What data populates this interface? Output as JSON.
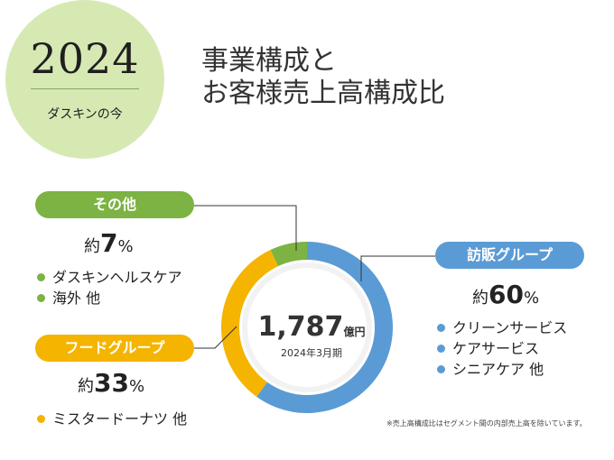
{
  "badge": {
    "year": "2024",
    "subtitle": "ダスキンの今"
  },
  "title": {
    "line1": "事業構成と",
    "line2": "お客様売上高構成比"
  },
  "colors": {
    "visit": "#5b9bd5",
    "food": "#f4b400",
    "other": "#7cb342",
    "badge_bg": "#d6e9b3"
  },
  "center": {
    "value": "1,787",
    "unit": "億円",
    "date": "2024年3月期"
  },
  "groups": {
    "other": {
      "label": "その他",
      "prefix": "約",
      "value": "7",
      "suffix": "%",
      "items": [
        "ダスキンヘルスケア",
        "海外 他"
      ]
    },
    "food": {
      "label": "フードグループ",
      "prefix": "約",
      "value": "33",
      "suffix": "%",
      "items": [
        "ミスタードーナツ 他"
      ]
    },
    "visit": {
      "label": "訪販グループ",
      "prefix": "約",
      "value": "60",
      "suffix": "%",
      "items": [
        "クリーンサービス",
        "ケアサービス",
        "シニアケア 他"
      ]
    }
  },
  "footnote": "※売上高構成比はセグメント間の内部売上高を除いています。",
  "chart_data": {
    "type": "pie",
    "categories": [
      "訪販グループ",
      "フードグループ",
      "その他"
    ],
    "values": [
      60,
      33,
      7
    ],
    "unit": "%",
    "total": "1,787億円",
    "period": "2024年3月期"
  }
}
